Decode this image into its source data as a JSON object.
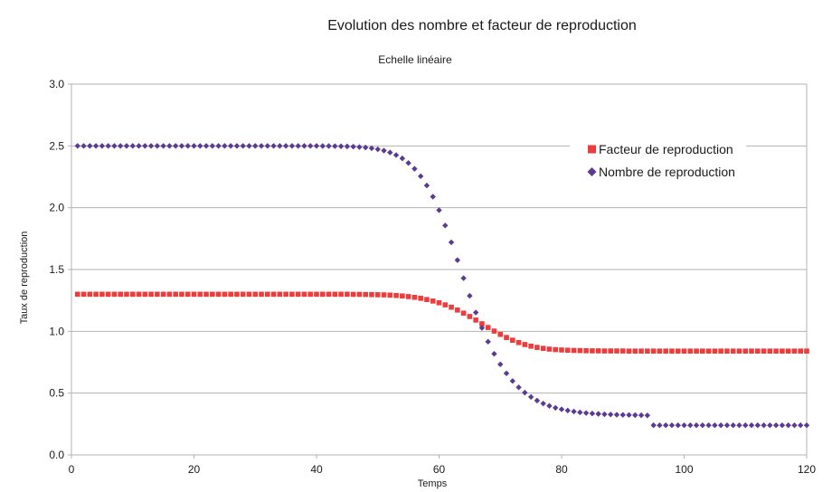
{
  "chart_data": {
    "type": "scatter",
    "title": "Evolution des nombre et facteur de reproduction",
    "subtitle": "Echelle linéaire",
    "xlabel": "Temps",
    "ylabel": "Taux de reproduction",
    "xlim": [
      0,
      120
    ],
    "ylim": [
      0,
      3
    ],
    "xticks": [
      "0",
      "20",
      "40",
      "60",
      "80",
      "100",
      "120"
    ],
    "yticks": [
      "0.0",
      "0.5",
      "1.0",
      "1.5",
      "2.0",
      "2.5",
      "3.0"
    ],
    "grid": "horizontal",
    "legend_position": "top-right",
    "series": [
      {
        "name": "Facteur de reproduction",
        "marker": "square",
        "color": "#ee3b3b",
        "x": [
          1,
          2,
          3,
          4,
          5,
          6,
          7,
          8,
          9,
          10,
          11,
          12,
          13,
          14,
          15,
          16,
          17,
          18,
          19,
          20,
          21,
          22,
          23,
          24,
          25,
          26,
          27,
          28,
          29,
          30,
          31,
          32,
          33,
          34,
          35,
          36,
          37,
          38,
          39,
          40,
          41,
          42,
          43,
          44,
          45,
          46,
          47,
          48,
          49,
          50,
          51,
          52,
          53,
          54,
          55,
          56,
          57,
          58,
          59,
          60,
          61,
          62,
          63,
          64,
          65,
          66,
          67,
          68,
          69,
          70,
          71,
          72,
          73,
          74,
          75,
          76,
          77,
          78,
          79,
          80,
          81,
          82,
          83,
          84,
          85,
          86,
          87,
          88,
          89,
          90,
          91,
          92,
          93,
          94,
          95,
          96,
          97,
          98,
          99,
          100,
          101,
          102,
          103,
          104,
          105,
          106,
          107,
          108,
          109,
          110,
          111,
          112,
          113,
          114,
          115,
          116,
          117,
          118,
          119,
          120
        ],
        "y": [
          1.3,
          1.3,
          1.3,
          1.3,
          1.3,
          1.3,
          1.3,
          1.3,
          1.3,
          1.3,
          1.3,
          1.3,
          1.3,
          1.3,
          1.3,
          1.3,
          1.3,
          1.3,
          1.3,
          1.3,
          1.3,
          1.3,
          1.3,
          1.3,
          1.3,
          1.3,
          1.3,
          1.3,
          1.3,
          1.3,
          1.3,
          1.3,
          1.3,
          1.3,
          1.3,
          1.3,
          1.3,
          1.3,
          1.3,
          1.3,
          1.3,
          1.3,
          1.3,
          1.3,
          1.3,
          1.299,
          1.299,
          1.298,
          1.297,
          1.296,
          1.295,
          1.293,
          1.29,
          1.286,
          1.281,
          1.275,
          1.267,
          1.257,
          1.245,
          1.231,
          1.214,
          1.195,
          1.172,
          1.147,
          1.12,
          1.091,
          1.061,
          1.031,
          1.002,
          0.975,
          0.95,
          0.928,
          0.909,
          0.893,
          0.88,
          0.87,
          0.862,
          0.856,
          0.852,
          0.849,
          0.847,
          0.845,
          0.844,
          0.843,
          0.842,
          0.842,
          0.841,
          0.841,
          0.841,
          0.841,
          0.84,
          0.84,
          0.84,
          0.84,
          0.84,
          0.84,
          0.84,
          0.84,
          0.84,
          0.84,
          0.84,
          0.84,
          0.84,
          0.84,
          0.84,
          0.84,
          0.84,
          0.84,
          0.84,
          0.84,
          0.84,
          0.84,
          0.84,
          0.84,
          0.84,
          0.84,
          0.84,
          0.84,
          0.84,
          0.84
        ]
      },
      {
        "name": "Nombre de reproduction",
        "marker": "diamond",
        "color": "#5b3a91",
        "x": [
          1,
          2,
          3,
          4,
          5,
          6,
          7,
          8,
          9,
          10,
          11,
          12,
          13,
          14,
          15,
          16,
          17,
          18,
          19,
          20,
          21,
          22,
          23,
          24,
          25,
          26,
          27,
          28,
          29,
          30,
          31,
          32,
          33,
          34,
          35,
          36,
          37,
          38,
          39,
          40,
          41,
          42,
          43,
          44,
          45,
          46,
          47,
          48,
          49,
          50,
          51,
          52,
          53,
          54,
          55,
          56,
          57,
          58,
          59,
          60,
          61,
          62,
          63,
          64,
          65,
          66,
          67,
          68,
          69,
          70,
          71,
          72,
          73,
          74,
          75,
          76,
          77,
          78,
          79,
          80,
          81,
          82,
          83,
          84,
          85,
          86,
          87,
          88,
          89,
          90,
          91,
          92,
          93,
          94,
          95,
          96,
          97,
          98,
          99,
          100,
          101,
          102,
          103,
          104,
          105,
          106,
          107,
          108,
          109,
          110,
          111,
          112,
          113,
          114,
          115,
          116,
          117,
          118,
          119,
          120
        ],
        "y": [
          2.5,
          2.5,
          2.5,
          2.5,
          2.5,
          2.5,
          2.5,
          2.5,
          2.5,
          2.5,
          2.5,
          2.5,
          2.5,
          2.5,
          2.5,
          2.5,
          2.5,
          2.5,
          2.5,
          2.5,
          2.5,
          2.5,
          2.5,
          2.5,
          2.5,
          2.5,
          2.5,
          2.5,
          2.5,
          2.5,
          2.5,
          2.5,
          2.5,
          2.5,
          2.5,
          2.5,
          2.5,
          2.5,
          2.5,
          2.5,
          2.499,
          2.499,
          2.498,
          2.497,
          2.496,
          2.494,
          2.491,
          2.487,
          2.481,
          2.473,
          2.462,
          2.447,
          2.426,
          2.399,
          2.362,
          2.315,
          2.255,
          2.18,
          2.089,
          1.98,
          1.856,
          1.72,
          1.576,
          1.43,
          1.287,
          1.152,
          1.028,
          0.916,
          0.818,
          0.733,
          0.66,
          0.598,
          0.547,
          0.504,
          0.469,
          0.44,
          0.416,
          0.397,
          0.381,
          0.369,
          0.359,
          0.351,
          0.344,
          0.339,
          0.335,
          0.332,
          0.329,
          0.327,
          0.325,
          0.324,
          0.323,
          0.322,
          0.321,
          0.32,
          0.24,
          0.24,
          0.24,
          0.24,
          0.24,
          0.24,
          0.24,
          0.24,
          0.24,
          0.24,
          0.24,
          0.24,
          0.24,
          0.24,
          0.24,
          0.24,
          0.24,
          0.24,
          0.24,
          0.24,
          0.24,
          0.24,
          0.24,
          0.24,
          0.24,
          0.24
        ]
      }
    ]
  }
}
